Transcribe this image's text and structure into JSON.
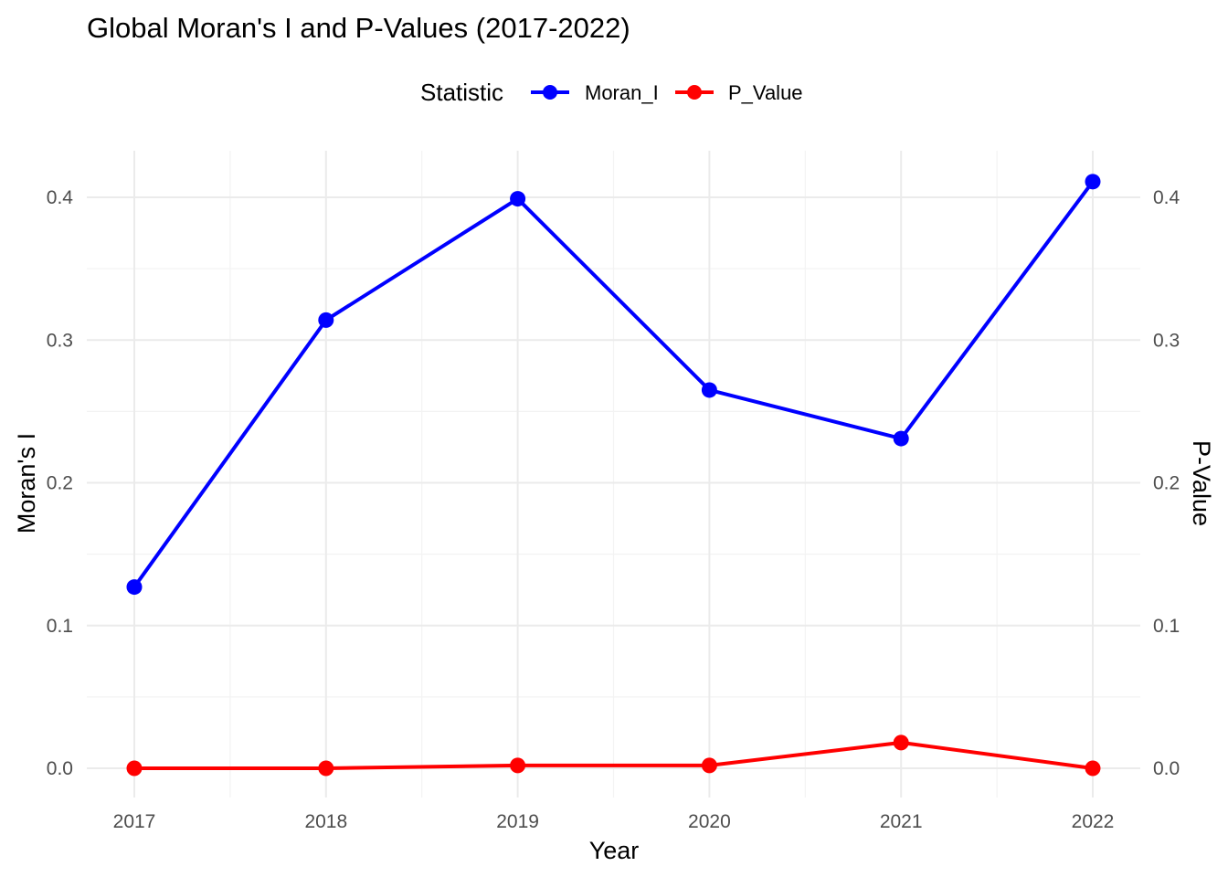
{
  "chart_data": {
    "type": "line",
    "title": "Global Moran's I and P-Values (2017-2022)",
    "xlabel": "Year",
    "ylabel": "Moran's I",
    "ylabel_secondary": "P-Value",
    "x": [
      "2017",
      "2018",
      "2019",
      "2020",
      "2021",
      "2022"
    ],
    "ylim": [
      -0.02,
      0.43
    ],
    "y_ticks": [
      "0.0",
      "0.1",
      "0.2",
      "0.3",
      "0.4"
    ],
    "y_ticks_secondary": [
      "0.0",
      "0.1",
      "0.2",
      "0.3",
      "0.4"
    ],
    "grid": true,
    "legend": {
      "title": "Statistic",
      "position": "top",
      "entries": [
        "Moran_I",
        "P_Value"
      ]
    },
    "series": [
      {
        "name": "Moran_I",
        "color": "#0000ff",
        "values": [
          0.127,
          0.314,
          0.399,
          0.265,
          0.231,
          0.411
        ]
      },
      {
        "name": "P_Value",
        "color": "#ff0000",
        "values": [
          0.0,
          0.0,
          0.002,
          0.002,
          0.018,
          0.0
        ]
      }
    ]
  }
}
